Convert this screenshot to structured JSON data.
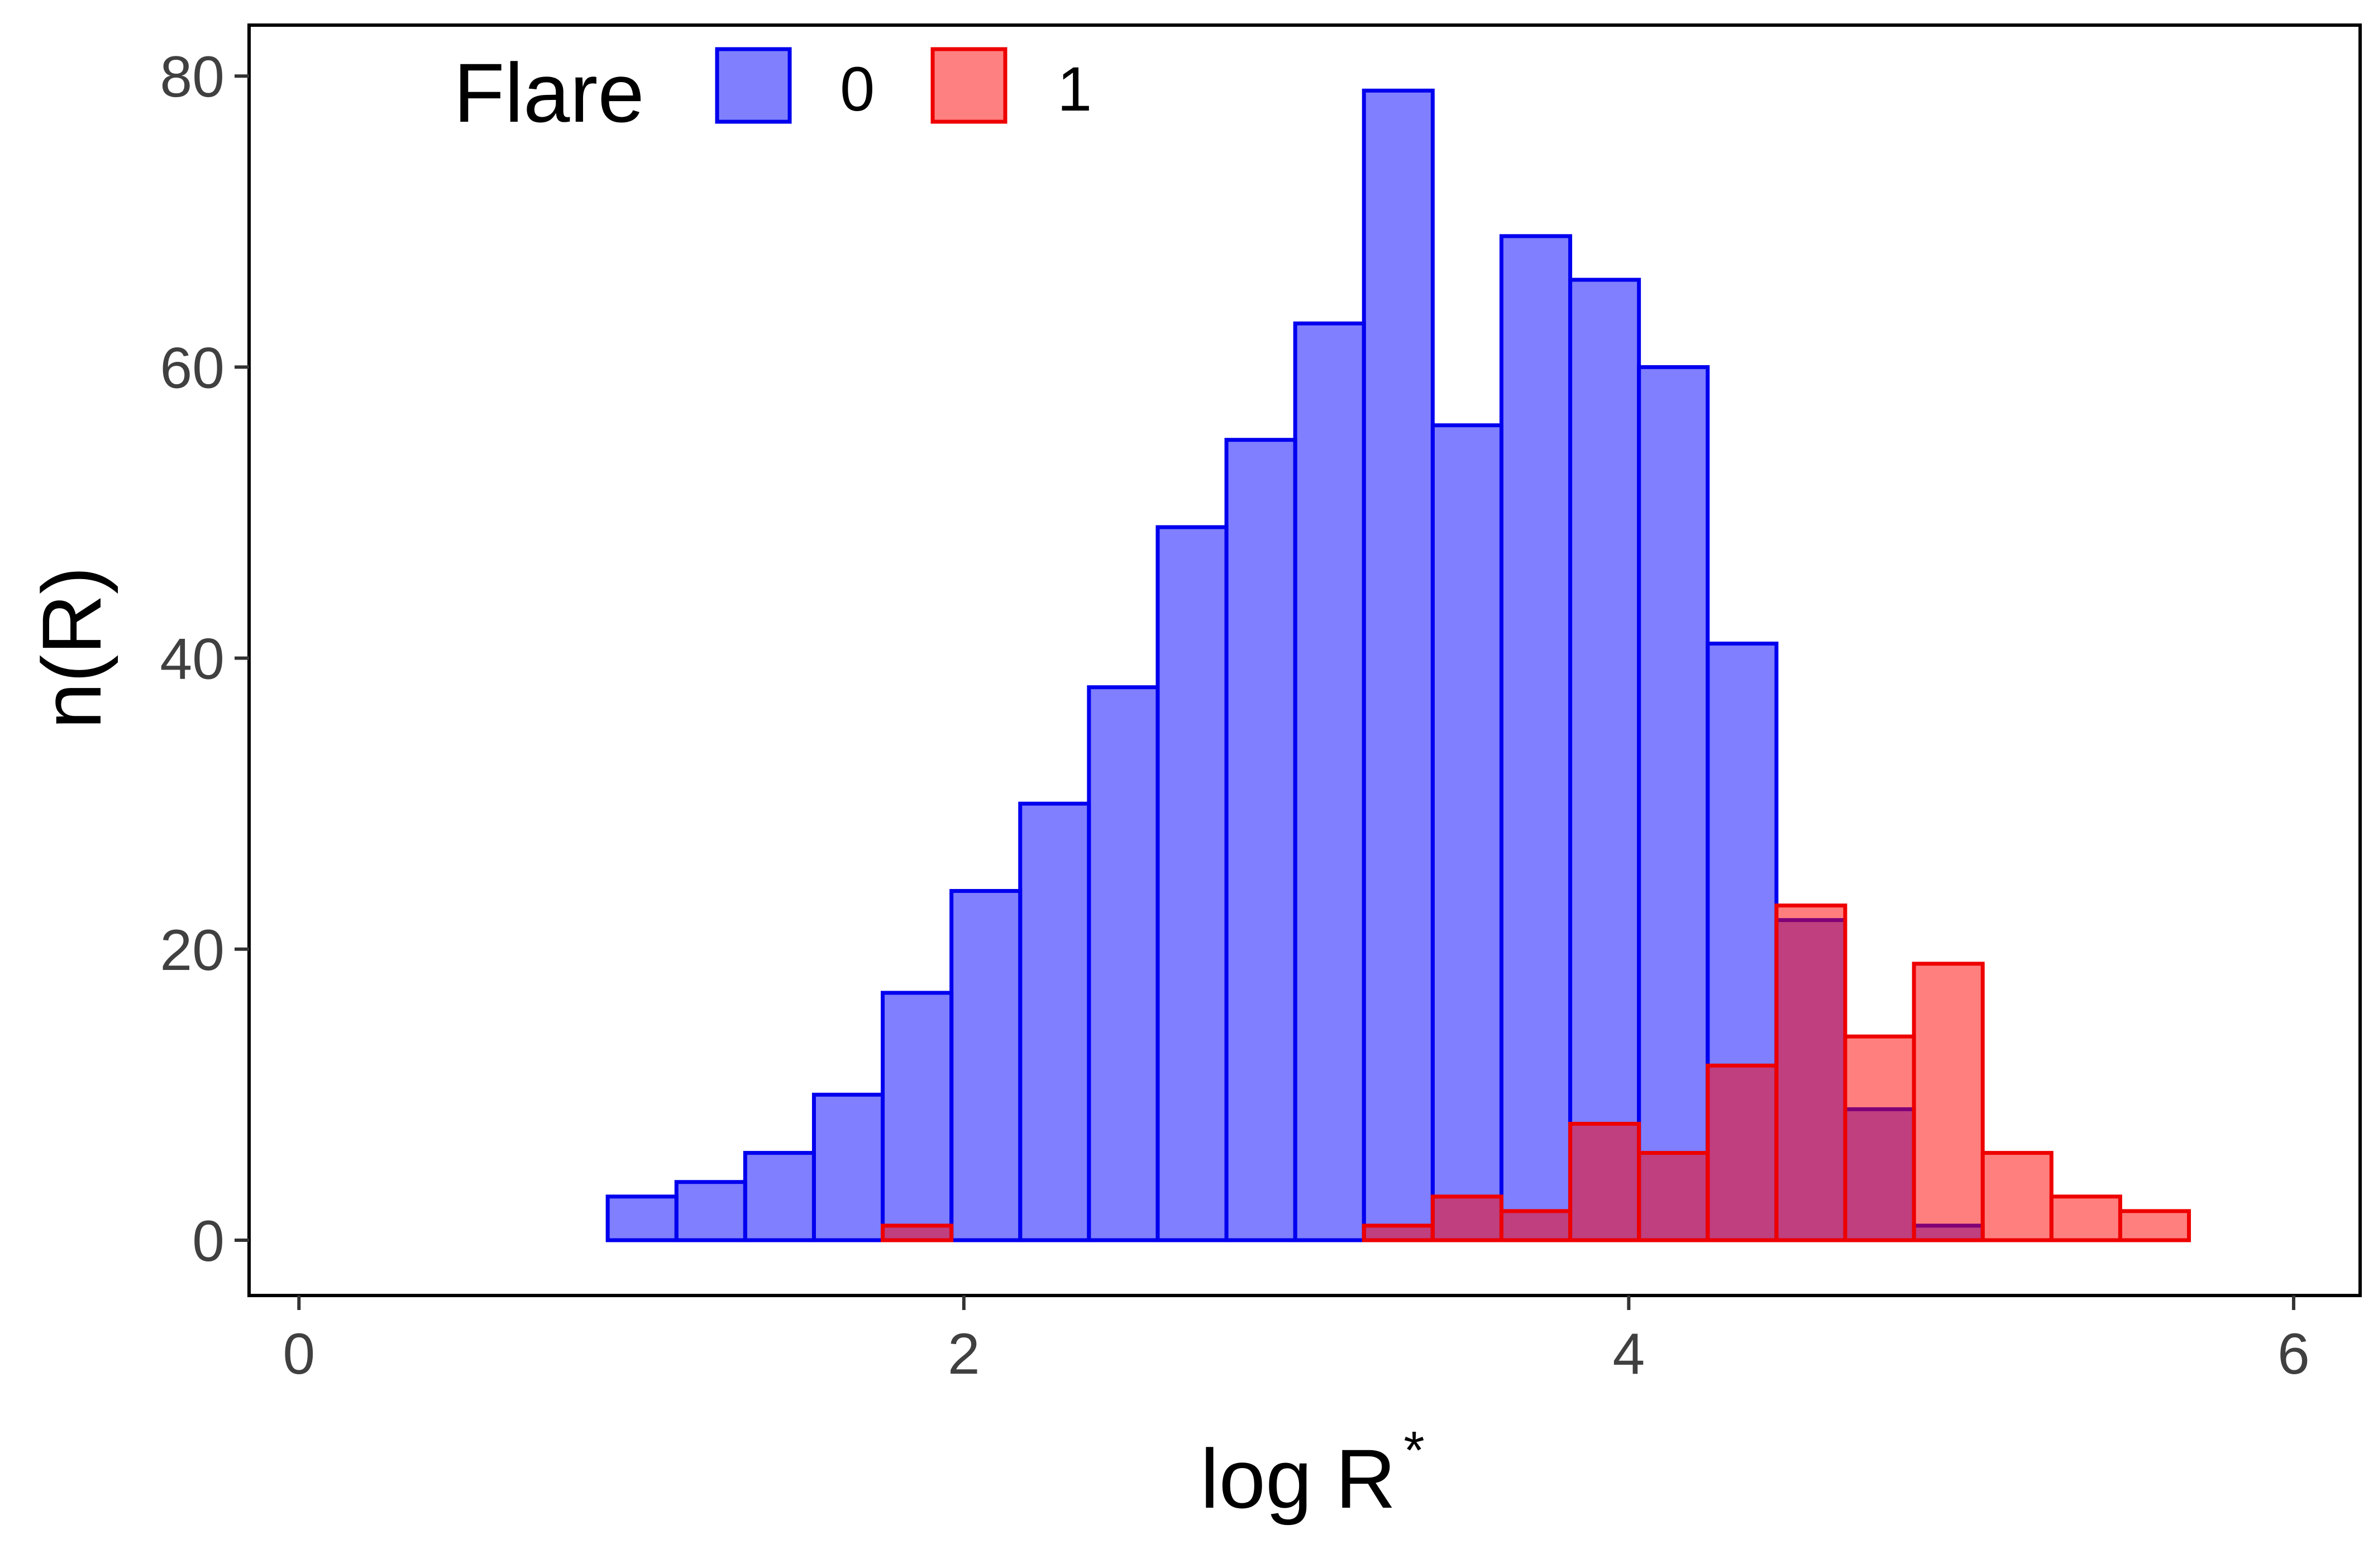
{
  "chart_data": {
    "type": "bar",
    "subtype": "overlaid-histogram",
    "title": "",
    "xlabel": "log R",
    "xlabel_superscript": "*",
    "ylabel": "n(R)",
    "xlim": [
      -0.15,
      6.2
    ],
    "ylim": [
      -3.8,
      83.5
    ],
    "xticks": [
      0,
      2,
      4,
      6
    ],
    "yticks": [
      0,
      20,
      40,
      60,
      80
    ],
    "xtick_labels": [
      "0",
      "2",
      "4",
      "6"
    ],
    "ytick_labels": [
      "0",
      "20",
      "40",
      "60",
      "80"
    ],
    "grid": false,
    "legend": {
      "title": "Flare",
      "position": "top-left",
      "entries": [
        "0",
        "1"
      ]
    },
    "bin_width": 0.2068,
    "bin_starts": [
      0.1015,
      0.3083,
      0.5151,
      0.7219,
      0.9287,
      1.1355,
      1.3423,
      1.5491,
      1.7559,
      1.9627,
      2.1695,
      2.3763,
      2.5831,
      2.7899,
      2.9967,
      3.2035,
      3.4103,
      3.6171,
      3.8239,
      4.0307,
      4.2375,
      4.4443,
      4.6511,
      4.8579,
      5.0647,
      5.2715,
      5.4783,
      5.6851
    ],
    "series": [
      {
        "name": "0",
        "fill": "#8080ff",
        "stroke": "#0000ee",
        "values": [
          0,
          0,
          0,
          0,
          3,
          4,
          6,
          10,
          17,
          24,
          30,
          38,
          49,
          55,
          63,
          79,
          56,
          69,
          66,
          60,
          41,
          22,
          9,
          1,
          0,
          0,
          0,
          0
        ]
      },
      {
        "name": "1",
        "fill": "#ff8080",
        "stroke": "#ee0000",
        "values": [
          0,
          0,
          0,
          0,
          0,
          0,
          0,
          0,
          1,
          0,
          0,
          0,
          0,
          0,
          0,
          1,
          3,
          2,
          8,
          6,
          12,
          23,
          14,
          19,
          6,
          3,
          2,
          0
        ]
      }
    ]
  }
}
